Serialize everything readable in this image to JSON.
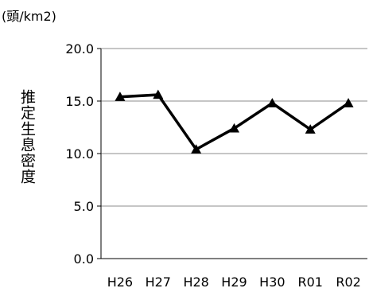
{
  "chart_data": {
    "type": "line",
    "unit_label": "(頭/km2)",
    "ylabel": "推定生息密度",
    "xlabel": "",
    "categories": [
      "H26",
      "H27",
      "H28",
      "H29",
      "H30",
      "R01",
      "R02"
    ],
    "series": [
      {
        "values": [
          15.4,
          15.6,
          10.4,
          12.4,
          14.8,
          12.3,
          14.8
        ]
      }
    ],
    "ylim": [
      0,
      20
    ],
    "yticks": [
      "0.0",
      "5.0",
      "10.0",
      "15.0",
      "20.0"
    ],
    "grid": true,
    "legend": "none",
    "marker": "triangle",
    "line_color": "#000000"
  }
}
